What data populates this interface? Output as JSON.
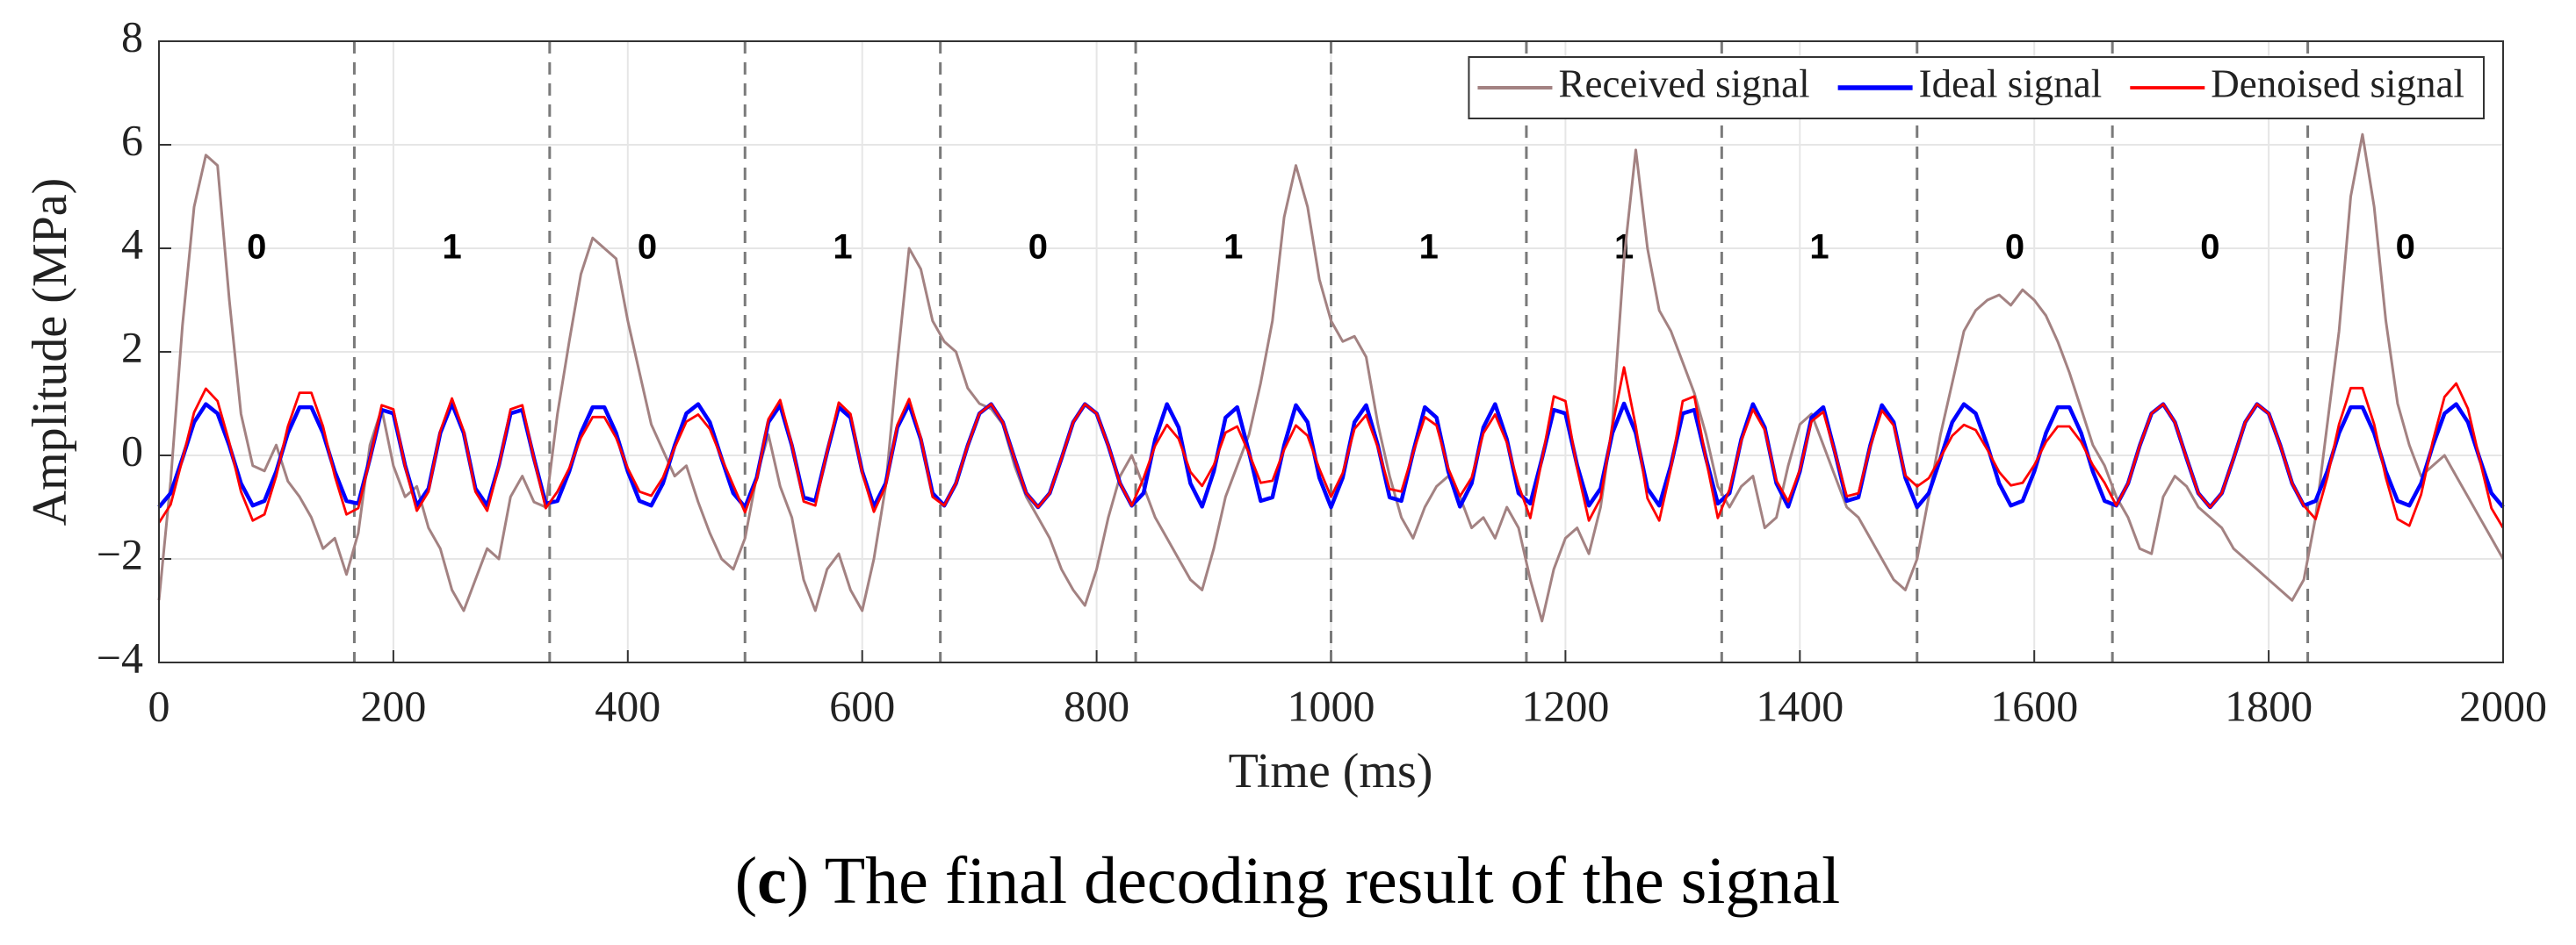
{
  "chart_data": {
    "type": "line",
    "xlabel": "Time (ms)",
    "ylabel": "Amplitude (MPa)",
    "caption": [
      "(",
      "c",
      ") The final decoding result of the signal"
    ],
    "xlim": [
      0,
      2000
    ],
    "ylim": [
      -4,
      8
    ],
    "xticks": [
      0,
      200,
      400,
      600,
      800,
      1000,
      1200,
      1400,
      1600,
      1800,
      2000
    ],
    "yticks": [
      {
        "value": -4,
        "label": "−4"
      },
      {
        "value": -2,
        "label": "−2"
      },
      0,
      2,
      4,
      6,
      8
    ],
    "grid": true,
    "legend": "top-right",
    "bit_boundaries": [
      166.67,
      333.33,
      500,
      666.67,
      833.33,
      1000,
      1166.67,
      1333.33,
      1500,
      1666.67,
      1833.33
    ],
    "bits": [
      "0",
      "1",
      "0",
      "1",
      "0",
      "1",
      "1",
      "1",
      "1",
      "0",
      "0",
      "0"
    ],
    "x": [
      0,
      10,
      20,
      30,
      40,
      50,
      60,
      70,
      80,
      90,
      100,
      110,
      120,
      130,
      140,
      150,
      160,
      170,
      180,
      190,
      200,
      210,
      220,
      230,
      240,
      250,
      260,
      270,
      280,
      290,
      300,
      310,
      320,
      330,
      340,
      350,
      360,
      370,
      380,
      390,
      400,
      410,
      420,
      430,
      440,
      450,
      460,
      470,
      480,
      490,
      500,
      510,
      520,
      530,
      540,
      550,
      560,
      570,
      580,
      590,
      600,
      610,
      620,
      630,
      640,
      650,
      660,
      670,
      680,
      690,
      700,
      710,
      720,
      730,
      740,
      750,
      760,
      770,
      780,
      790,
      800,
      810,
      820,
      830,
      840,
      850,
      860,
      870,
      880,
      890,
      900,
      910,
      920,
      930,
      940,
      950,
      960,
      970,
      980,
      990,
      1000,
      1010,
      1020,
      1030,
      1040,
      1050,
      1060,
      1070,
      1080,
      1090,
      1100,
      1110,
      1120,
      1130,
      1140,
      1150,
      1160,
      1170,
      1180,
      1190,
      1200,
      1210,
      1220,
      1230,
      1240,
      1250,
      1260,
      1270,
      1280,
      1290,
      1300,
      1310,
      1320,
      1330,
      1340,
      1350,
      1360,
      1370,
      1380,
      1390,
      1400,
      1410,
      1420,
      1430,
      1440,
      1450,
      1460,
      1470,
      1480,
      1490,
      1500,
      1510,
      1520,
      1530,
      1540,
      1550,
      1560,
      1570,
      1580,
      1590,
      1600,
      1610,
      1620,
      1630,
      1640,
      1650,
      1660,
      1670,
      1680,
      1690,
      1700,
      1710,
      1720,
      1730,
      1740,
      1750,
      1760,
      1770,
      1780,
      1790,
      1800,
      1810,
      1820,
      1830,
      1840,
      1850,
      1860,
      1870,
      1880,
      1890,
      1900,
      1910,
      1920,
      1930,
      1940,
      1950,
      1960,
      1970,
      1980,
      1990,
      2000
    ],
    "series": [
      {
        "name": "Received signal",
        "color": "#a38282",
        "values": [
          -2.8,
          -0.5,
          2.5,
          4.8,
          5.8,
          5.6,
          3.0,
          0.8,
          -0.2,
          -0.3,
          0.2,
          -0.5,
          -0.8,
          -1.2,
          -1.8,
          -1.6,
          -2.3,
          -1.5,
          0.2,
          0.9,
          -0.2,
          -0.8,
          -0.6,
          -1.4,
          -1.8,
          -2.6,
          -3.0,
          -2.4,
          -1.8,
          -2.0,
          -0.8,
          -0.4,
          -0.9,
          -1.0,
          0.8,
          2.2,
          3.5,
          4.2,
          4.0,
          3.8,
          2.6,
          1.6,
          0.6,
          0.1,
          -0.4,
          -0.2,
          -0.9,
          -1.5,
          -2.0,
          -2.2,
          -1.6,
          -0.4,
          0.4,
          -0.6,
          -1.2,
          -2.4,
          -3.0,
          -2.2,
          -1.9,
          -2.6,
          -3.0,
          -2.0,
          -0.6,
          1.8,
          4.0,
          3.6,
          2.6,
          2.2,
          2.0,
          1.3,
          1.0,
          0.9,
          0.6,
          -0.2,
          -0.8,
          -1.2,
          -1.6,
          -2.2,
          -2.6,
          -2.9,
          -2.2,
          -1.2,
          -0.4,
          0.0,
          -0.6,
          -1.2,
          -1.6,
          -2.0,
          -2.4,
          -2.6,
          -1.8,
          -0.8,
          -0.2,
          0.4,
          1.4,
          2.6,
          4.6,
          5.6,
          4.8,
          3.4,
          2.6,
          2.2,
          2.3,
          1.9,
          0.6,
          -0.4,
          -1.2,
          -1.6,
          -1.0,
          -0.6,
          -0.4,
          -0.8,
          -1.4,
          -1.2,
          -1.6,
          -1.0,
          -1.4,
          -2.4,
          -3.2,
          -2.2,
          -1.6,
          -1.4,
          -1.9,
          -1.0,
          0.6,
          3.8,
          5.9,
          4.0,
          2.8,
          2.4,
          1.8,
          1.2,
          0.4,
          -0.6,
          -1.0,
          -0.6,
          -0.4,
          -1.4,
          -1.2,
          -0.2,
          0.6,
          0.8,
          0.2,
          -0.4,
          -1.0,
          -1.2,
          -1.6,
          -2.0,
          -2.4,
          -2.6,
          -2.0,
          -0.8,
          0.4,
          1.4,
          2.4,
          2.8,
          3.0,
          3.1,
          2.9,
          3.2,
          3.0,
          2.7,
          2.2,
          1.6,
          0.9,
          0.2,
          -0.2,
          -0.8,
          -1.2,
          -1.8,
          -1.9,
          -0.8,
          -0.4,
          -0.6,
          -1.0,
          -1.2,
          -1.4,
          -1.8,
          -2.0,
          -2.2,
          -2.4,
          -2.6,
          -2.8,
          -2.4,
          -1.2,
          0.6,
          2.4,
          5.0,
          6.2,
          4.8,
          2.6,
          1.0,
          0.2,
          -0.4,
          -0.2,
          0.0,
          -0.4,
          -0.8,
          -1.2,
          -1.6,
          -2.0
        ]
      },
      {
        "name": "Ideal signal",
        "color": "#0000ff",
        "values": [
          -1,
          -0.73,
          -0.06,
          0.64,
          0.99,
          0.81,
          0.19,
          -0.54,
          -0.97,
          -0.88,
          -0.31,
          0.43,
          0.93,
          0.93,
          0.43,
          -0.31,
          -0.88,
          -0.93,
          -0.06,
          0.88,
          0.81,
          -0.19,
          -0.97,
          -0.64,
          0.43,
          1.0,
          0.43,
          -0.64,
          -0.97,
          -0.19,
          0.81,
          0.88,
          -0.06,
          -0.93,
          -0.88,
          -0.31,
          0.43,
          0.93,
          0.93,
          0.43,
          -0.31,
          -0.88,
          -0.97,
          -0.54,
          0.19,
          0.81,
          0.99,
          0.64,
          -0.06,
          -0.73,
          -1,
          -0.43,
          0.64,
          0.97,
          0.19,
          -0.81,
          -0.88,
          0.06,
          0.93,
          0.73,
          -0.31,
          -0.99,
          -0.54,
          0.54,
          0.99,
          0.31,
          -0.73,
          -0.97,
          -0.54,
          0.19,
          0.81,
          0.99,
          0.64,
          -0.06,
          -0.73,
          -1.0,
          -0.73,
          -0.06,
          0.64,
          0.99,
          0.81,
          0.19,
          -0.54,
          -0.97,
          -0.73,
          0.31,
          0.99,
          0.54,
          -0.54,
          -0.99,
          -0.31,
          0.73,
          0.93,
          0.06,
          -0.88,
          -0.81,
          0.19,
          0.97,
          0.64,
          -0.43,
          -1,
          -0.43,
          0.64,
          0.97,
          0.19,
          -0.81,
          -0.88,
          0.06,
          0.93,
          0.73,
          -0.31,
          -0.99,
          -0.54,
          0.54,
          0.99,
          0.31,
          -0.73,
          -0.93,
          -0.06,
          0.88,
          0.81,
          -0.19,
          -0.97,
          -0.64,
          0.43,
          1.0,
          0.43,
          -0.64,
          -0.97,
          -0.19,
          0.81,
          0.88,
          -0.06,
          -0.93,
          -0.73,
          0.31,
          0.99,
          0.54,
          -0.54,
          -0.99,
          -0.31,
          0.73,
          0.93,
          0.06,
          -0.88,
          -0.81,
          0.19,
          0.97,
          0.64,
          -0.43,
          -1,
          -0.73,
          -0.06,
          0.64,
          0.99,
          0.81,
          0.19,
          -0.54,
          -0.97,
          -0.88,
          -0.31,
          0.43,
          0.93,
          0.93,
          0.43,
          -0.31,
          -0.88,
          -0.97,
          -0.54,
          0.19,
          0.81,
          0.99,
          0.64,
          -0.06,
          -0.73,
          -1.0,
          -0.73,
          -0.06,
          0.64,
          0.99,
          0.81,
          0.19,
          -0.54,
          -0.97,
          -0.88,
          -0.31,
          0.43,
          0.93,
          0.93,
          0.43,
          -0.31,
          -0.88,
          -0.97,
          -0.54,
          0.19,
          0.81,
          0.99,
          0.64,
          -0.06,
          -0.73,
          -1.0
        ]
      },
      {
        "name": "Denoised signal",
        "color": "#ff0000",
        "values": [
          -1.3,
          -0.95,
          -0.08,
          0.83,
          1.29,
          1.05,
          0.25,
          -0.7,
          -1.26,
          -1.14,
          -0.4,
          0.56,
          1.21,
          1.21,
          0.56,
          -0.4,
          -1.14,
          -1.02,
          -0.07,
          0.97,
          0.89,
          -0.21,
          -1.07,
          -0.7,
          0.47,
          1.1,
          0.47,
          -0.7,
          -1.07,
          -0.21,
          0.89,
          0.97,
          -0.07,
          -1.02,
          -0.7,
          -0.25,
          0.34,
          0.74,
          0.74,
          0.34,
          -0.25,
          -0.7,
          -0.78,
          -0.43,
          0.15,
          0.65,
          0.79,
          0.51,
          -0.05,
          -0.58,
          -1.1,
          -0.47,
          0.7,
          1.07,
          0.21,
          -0.89,
          -0.97,
          0.07,
          1.02,
          0.8,
          -0.34,
          -1.09,
          -0.59,
          0.59,
          1.09,
          0.34,
          -0.8,
          -0.97,
          -0.54,
          0.19,
          0.81,
          0.99,
          0.64,
          -0.06,
          -0.73,
          -1.0,
          -0.73,
          -0.06,
          0.64,
          0.99,
          0.81,
          0.19,
          -0.54,
          -0.97,
          -0.44,
          0.19,
          0.59,
          0.32,
          -0.32,
          -0.59,
          -0.19,
          0.44,
          0.56,
          0.04,
          -0.53,
          -0.49,
          0.11,
          0.58,
          0.38,
          -0.26,
          -0.8,
          -0.34,
          0.51,
          0.78,
          0.15,
          -0.65,
          -0.7,
          0.05,
          0.74,
          0.58,
          -0.25,
          -0.79,
          -0.43,
          0.43,
          0.79,
          0.25,
          -0.58,
          -1.21,
          -0.08,
          1.14,
          1.05,
          -0.25,
          -1.26,
          -0.83,
          0.56,
          1.7,
          0.56,
          -0.83,
          -1.26,
          -0.25,
          1.05,
          1.14,
          -0.08,
          -1.21,
          -0.66,
          0.28,
          0.89,
          0.49,
          -0.49,
          -0.89,
          -0.28,
          0.66,
          0.84,
          0.05,
          -0.79,
          -0.73,
          0.17,
          0.87,
          0.58,
          -0.39,
          -0.6,
          -0.44,
          -0.04,
          0.38,
          0.59,
          0.49,
          0.11,
          -0.32,
          -0.58,
          -0.53,
          -0.19,
          0.26,
          0.56,
          0.56,
          0.26,
          -0.19,
          -0.53,
          -0.97,
          -0.54,
          0.19,
          0.81,
          0.99,
          0.64,
          -0.06,
          -0.73,
          -1.0,
          -0.73,
          -0.06,
          0.64,
          0.99,
          0.81,
          0.19,
          -0.54,
          -0.97,
          -1.23,
          -0.43,
          0.6,
          1.3,
          1.3,
          0.6,
          -0.43,
          -1.23,
          -1.36,
          -0.76,
          0.27,
          1.13,
          1.39,
          0.9,
          -0.08,
          -1.02,
          -1.4
        ]
      }
    ]
  }
}
